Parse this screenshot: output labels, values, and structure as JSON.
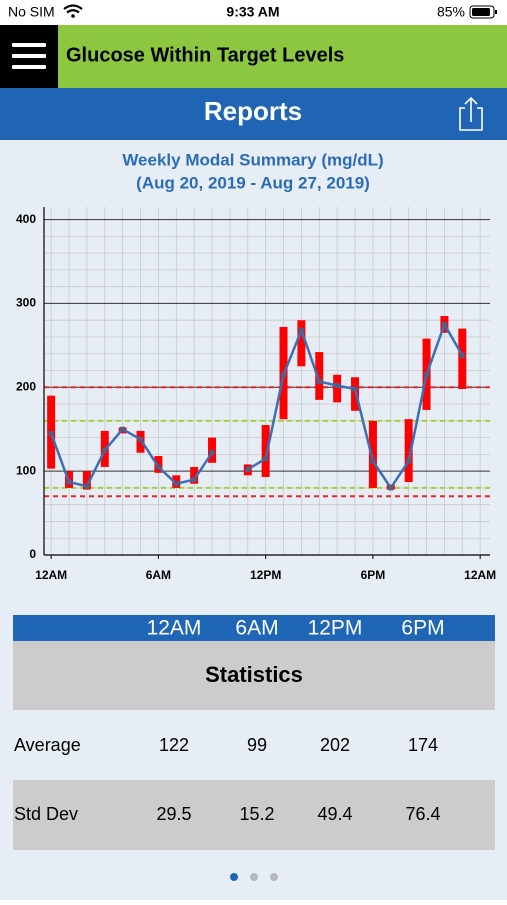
{
  "status_bar": {
    "carrier": "No SIM",
    "time": "9:33 AM",
    "battery": "85%"
  },
  "header": {
    "title": "Glucose Within Target Levels"
  },
  "nav": {
    "title": "Reports"
  },
  "chart_data": {
    "type": "range_line",
    "title": "Weekly Modal Summary (mg/dL)",
    "subtitle": "(Aug 20, 2019 - Aug 27, 2019)",
    "x": [
      0,
      1,
      2,
      3,
      4,
      5,
      6,
      7,
      8,
      9,
      10,
      11,
      12,
      13,
      14,
      15,
      16,
      17,
      18,
      19,
      20,
      21,
      22,
      23
    ],
    "values": [
      145,
      87,
      82,
      125,
      150,
      138,
      105,
      85,
      90,
      122,
      null,
      102,
      115,
      215,
      268,
      207,
      202,
      198,
      112,
      80,
      112,
      215,
      275,
      238
    ],
    "low": [
      103,
      80,
      78,
      105,
      145,
      122,
      98,
      80,
      85,
      110,
      null,
      95,
      93,
      162,
      225,
      185,
      182,
      172,
      80,
      78,
      87,
      173,
      265,
      198
    ],
    "high": [
      190,
      100,
      100,
      148,
      152,
      148,
      118,
      95,
      105,
      140,
      null,
      108,
      155,
      272,
      280,
      242,
      215,
      212,
      160,
      84,
      162,
      258,
      285,
      270
    ],
    "line_color": "#3b6fb6",
    "range_color": "#ff0000",
    "xlim": [
      -0.4,
      24.55
    ],
    "xticks": [
      {
        "value": 0,
        "label": "12AM"
      },
      {
        "value": 6,
        "label": "6AM"
      },
      {
        "value": 12,
        "label": "12PM"
      },
      {
        "value": 18,
        "label": "6PM"
      },
      {
        "value": 24,
        "label": "12AM"
      }
    ],
    "minor_xticks": [
      0,
      1,
      2,
      3,
      4,
      5,
      6,
      7,
      8,
      9,
      10,
      11,
      12,
      13,
      14,
      15,
      16,
      17,
      18,
      19,
      20,
      21,
      22,
      23,
      24
    ],
    "ylim": [
      0,
      415
    ],
    "yticks": [
      0,
      100,
      200,
      300,
      400
    ],
    "minor_yticks": [
      20,
      40,
      60,
      80,
      120,
      140,
      160,
      180,
      220,
      240,
      260,
      280,
      320,
      340,
      360,
      380
    ],
    "reference_lines": [
      {
        "value": 200,
        "color": "#e8262b"
      },
      {
        "value": 160,
        "color": "#9fd33a"
      },
      {
        "value": 80,
        "color": "#9fd33a"
      },
      {
        "value": 70,
        "color": "#e8262b"
      }
    ],
    "grid": true
  },
  "table": {
    "columns": [
      "12AM",
      "6AM",
      "12PM",
      "6PM"
    ],
    "title": "Statistics",
    "rows": [
      [
        "Average",
        122,
        99,
        202,
        174
      ],
      [
        "Std Dev",
        29.5,
        15.2,
        49.4,
        76.4
      ]
    ]
  }
}
